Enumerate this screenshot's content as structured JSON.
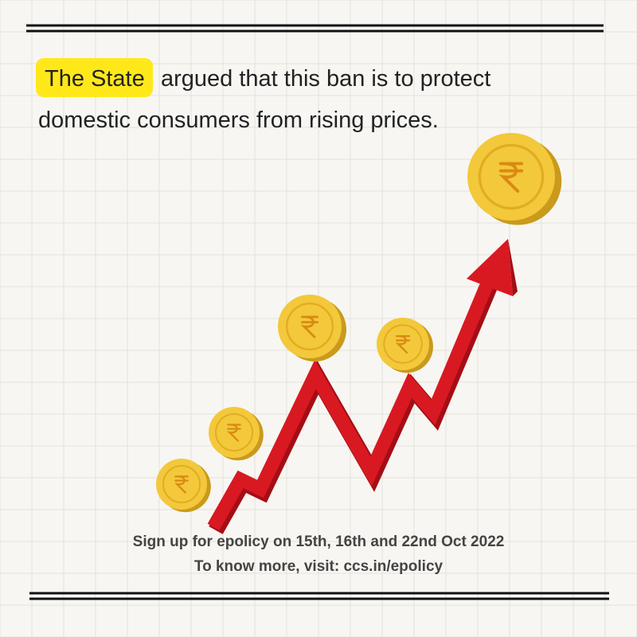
{
  "headline": {
    "highlight": "The State",
    "line1": "argued that this ban is to protect",
    "line2": "domestic consumers from rising prices."
  },
  "footer": {
    "line1": "Sign up for epolicy on 15th, 16th and 22nd Oct 2022",
    "line2": "To know more, visit: ccs.in/epolicy"
  }
}
